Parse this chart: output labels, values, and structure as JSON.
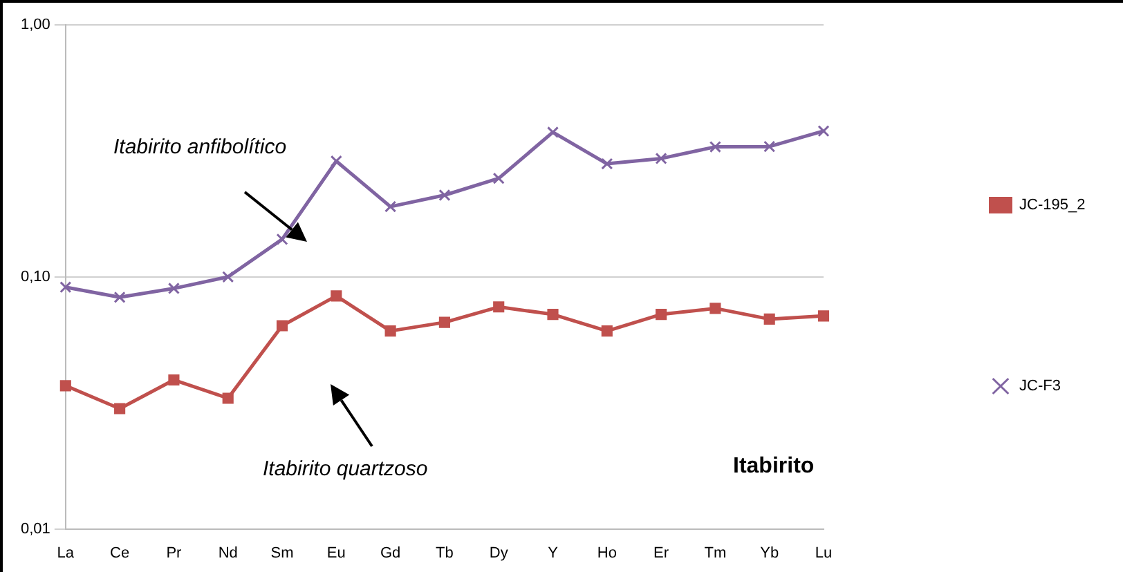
{
  "chart_data": {
    "type": "line",
    "categories": [
      "La",
      "Ce",
      "Pr",
      "Nd",
      "Sm",
      "Eu",
      "Gd",
      "Tb",
      "Dy",
      "Y",
      "Ho",
      "Er",
      "Tm",
      "Yb",
      "Lu"
    ],
    "series": [
      {
        "name": "JC-195_2",
        "color": "#c0504d",
        "marker": "square",
        "values": [
          0.037,
          0.03,
          0.039,
          0.033,
          0.064,
          0.084,
          0.061,
          0.066,
          0.076,
          0.071,
          0.061,
          0.071,
          0.075,
          0.068,
          0.07
        ]
      },
      {
        "name": "JC-F3",
        "color": "#8064a2",
        "marker": "cross",
        "values": [
          0.091,
          0.083,
          0.09,
          0.1,
          0.141,
          0.288,
          0.19,
          0.211,
          0.246,
          0.375,
          0.281,
          0.295,
          0.328,
          0.329,
          0.379
        ]
      }
    ],
    "log": "y",
    "ylim": [
      0.01,
      1
    ],
    "yticks": [
      {
        "value": 0.01,
        "label": "0,01"
      },
      {
        "value": 0.1,
        "label": "0,10"
      },
      {
        "value": 1,
        "label": "1,00"
      }
    ],
    "grid": "y",
    "legend": "right",
    "line_style": "solid",
    "annotations": [
      "Itabirito anfibolítico",
      "Itabirito quartzoso",
      "Itabirito"
    ]
  }
}
